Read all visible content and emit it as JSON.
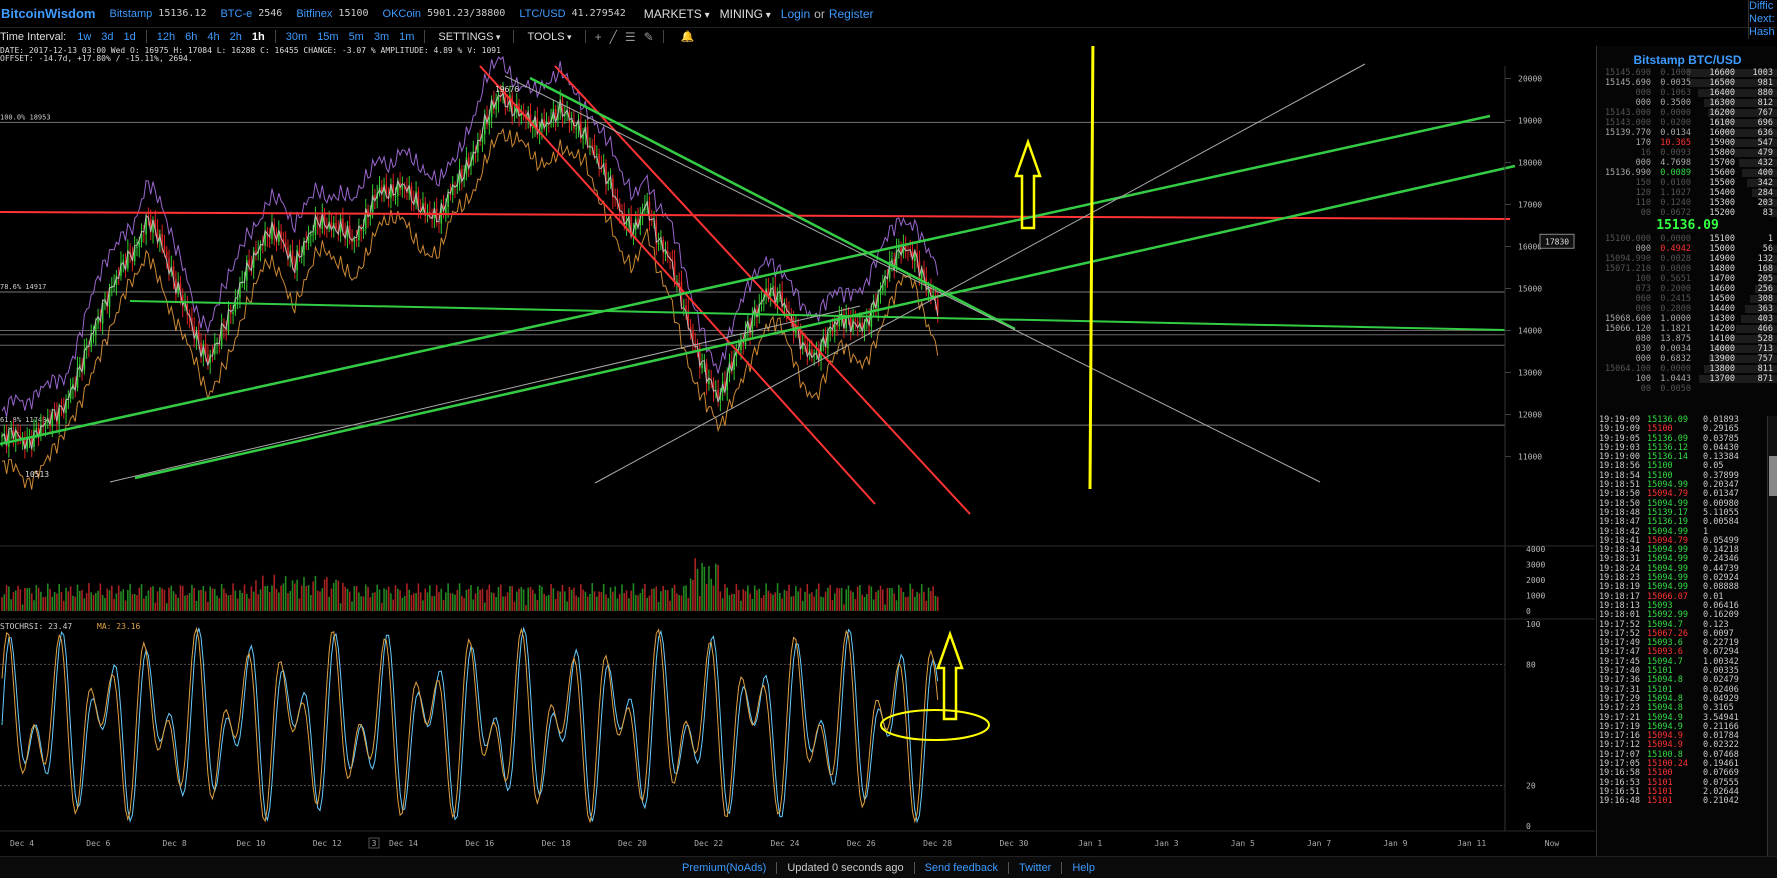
{
  "header": {
    "brand": "BitcoinWisdom",
    "exchanges": [
      {
        "name": "Bitstamp",
        "price": "15136.12"
      },
      {
        "name": "BTC-e",
        "price": "2546"
      },
      {
        "name": "Bitfinex",
        "price": "15100"
      },
      {
        "name": "OKCoin",
        "price": "5901.23/38800"
      },
      {
        "name": "LTC/USD",
        "price": "41.279542"
      }
    ],
    "menus": [
      "MARKETS",
      "MINING"
    ],
    "login": "Login",
    "or": "or",
    "register": "Register",
    "difficulty": [
      "Diffic",
      "Next:",
      "Hash"
    ]
  },
  "toolbar": {
    "time_interval_label": "Time Interval:",
    "intervals_long": [
      "1w",
      "3d",
      "1d"
    ],
    "intervals_hours": [
      "12h",
      "6h",
      "4h",
      "2h",
      "1h"
    ],
    "intervals_minutes": [
      "30m",
      "15m",
      "5m",
      "3m",
      "1m"
    ],
    "active_interval": "1h",
    "settings": "SETTINGS",
    "tools": "TOOLS"
  },
  "chart_info": {
    "line1": "DATE: 2017-12-13 03:00 Wed   O: 16975   H: 17084   L: 16288   C: 16455   CHANGE: -3.07 %   AMPLITUDE: 4.89 %   V: 1091",
    "line2": "OFFSET: -14.7d, +17.80% / -15.11%, 2694."
  },
  "chart_data": {
    "type": "candlestick",
    "price_axis_ticks": [
      "20000",
      "19000",
      "18000",
      "17000",
      "16000",
      "15000",
      "14000",
      "13000",
      "12000",
      "11000"
    ],
    "price_range": [
      10300,
      20200
    ],
    "volume_axis_ticks": [
      "4000",
      "3000",
      "2000",
      "1000",
      "0"
    ],
    "stochrsi_axis_ticks": [
      "100",
      "80",
      "20",
      "0"
    ],
    "x_ticks": [
      "Dec 4",
      "Dec 6",
      "Dec 8",
      "Dec 10",
      "Dec 12",
      "Dec 14",
      "Dec 16",
      "Dec 18",
      "Dec 20",
      "Dec 22",
      "Dec 24",
      "Dec 26",
      "Dec 28",
      "Dec 30",
      "Jan 1",
      "Jan 3",
      "Jan 5",
      "Jan 7",
      "Jan 9",
      "Jan 11",
      "Now"
    ],
    "x_marker": "3",
    "price_label": "17830",
    "high_label": "19676",
    "low_label": "10513",
    "fib_labels": [
      {
        "text": "100.0% 18953",
        "price": 18953
      },
      {
        "text": "78.6% 14917",
        "price": 14917
      },
      {
        "text": "61.8% 11748",
        "price": 11748
      }
    ],
    "fib_extra_levels": [
      14000,
      13900,
      13650
    ],
    "stochrsi_label": "STOCHRSI: 23.47",
    "ma_label": "MA: 23.16",
    "candle_closes": [
      11400,
      11550,
      11300,
      11650,
      11900,
      12100,
      12800,
      13600,
      14300,
      15000,
      15650,
      15900,
      16650,
      16200,
      15300,
      14600,
      13800,
      13300,
      13900,
      14500,
      15400,
      15900,
      16350,
      16200,
      15550,
      16100,
      16600,
      16500,
      16450,
      16100,
      16700,
      17400,
      17250,
      17450,
      17100,
      16800,
      16650,
      17350,
      17800,
      18300,
      19100,
      19650,
      19300,
      19100,
      18800,
      19000,
      19300,
      18900,
      18650,
      18100,
      17500,
      16700,
      16400,
      17050,
      16100,
      15700,
      14700,
      13600,
      12900,
      12400,
      13200,
      13800,
      14400,
      15000,
      14800,
      14200,
      13600,
      13400,
      13900,
      14300,
      14200,
      14100,
      14700,
      15500,
      16000,
      15800,
      15100,
      14600
    ]
  },
  "orderbook": {
    "title": "Bitstamp BTC/USD",
    "asks": [
      {
        "p": "15145.690",
        "a": "0.1000",
        "d": "16600",
        "c": "1003",
        "dim": true
      },
      {
        "p": "15145.690",
        "a": "0.0035",
        "d": "16500",
        "c": "981"
      },
      {
        "p": "000",
        "a": "0.1063",
        "d": "16400",
        "c": "880",
        "dim": true
      },
      {
        "p": "000",
        "a": "0.3500",
        "d": "16300",
        "c": "812"
      },
      {
        "p": "15143.000",
        "a": "0.0000",
        "d": "16200",
        "c": "767",
        "dim": true
      },
      {
        "p": "15143.000",
        "a": "0.0200",
        "d": "16100",
        "c": "696",
        "dim": true
      },
      {
        "p": "15139.770",
        "a": "0.0134",
        "d": "16000",
        "c": "636"
      },
      {
        "p": "170",
        "a": "10.365",
        "d": "15900",
        "c": "547",
        "red": true
      },
      {
        "p": "16",
        "a": "0.0093",
        "d": "15800",
        "c": "479",
        "dim": true
      },
      {
        "p": "000",
        "a": "4.7698",
        "d": "15700",
        "c": "432"
      },
      {
        "p": "15136.990",
        "a": "0.0089",
        "d": "15600",
        "c": "400",
        "green": true
      },
      {
        "p": "150",
        "a": "0.0100",
        "d": "15500",
        "c": "342",
        "dim": true
      },
      {
        "p": "120",
        "a": "1.1027",
        "d": "15400",
        "c": "284",
        "dim": true
      },
      {
        "p": "110",
        "a": "0.1240",
        "d": "15300",
        "c": "203",
        "dim": true
      },
      {
        "p": "00",
        "a": "0.0672",
        "d": "15200",
        "c": "83",
        "dim": true
      }
    ],
    "last": "15136.09",
    "bids": [
      {
        "p": "15100.000",
        "a": "0.0000",
        "d": "15100",
        "c": "1",
        "dim": true
      },
      {
        "p": "000",
        "a": "0.4942",
        "d": "15000",
        "c": "56",
        "red": true
      },
      {
        "p": "15094.990",
        "a": "0.0028",
        "d": "14900",
        "c": "132",
        "dim": true
      },
      {
        "p": "15071.210",
        "a": "0.0800",
        "d": "14800",
        "c": "168",
        "dim": true
      },
      {
        "p": "100",
        "a": "0.5651",
        "d": "14700",
        "c": "205",
        "dim": true
      },
      {
        "p": "073",
        "a": "0.2000",
        "d": "14600",
        "c": "256",
        "dim": true
      },
      {
        "p": "060",
        "a": "0.2415",
        "d": "14500",
        "c": "308",
        "dim": true
      },
      {
        "p": "000",
        "a": "0.2800",
        "d": "14400",
        "c": "363",
        "dim": true
      },
      {
        "p": "15068.600",
        "a": "1.0000",
        "d": "14300",
        "c": "403"
      },
      {
        "p": "15066.120",
        "a": "1.1821",
        "d": "14200",
        "c": "466"
      },
      {
        "p": "080",
        "a": "13.875",
        "d": "14100",
        "c": "528"
      },
      {
        "p": "030",
        "a": "0.0034",
        "d": "14000",
        "c": "713"
      },
      {
        "p": "000",
        "a": "0.6832",
        "d": "13900",
        "c": "757"
      },
      {
        "p": "15064.100",
        "a": "0.0000",
        "d": "13800",
        "c": "811",
        "dim": true
      },
      {
        "p": "100",
        "a": "1.0443",
        "d": "13700",
        "c": "871"
      },
      {
        "p": "00",
        "a": "0.0050",
        "d": "",
        "c": "",
        "dim": true
      }
    ]
  },
  "trades": [
    {
      "t": "19:19:09",
      "p": "15136.09",
      "a": "0.01893",
      "s": "b"
    },
    {
      "t": "19:19:09",
      "p": "15100",
      "a": "0.29165",
      "s": "s"
    },
    {
      "t": "19:19:05",
      "p": "15136.09",
      "a": "0.03785",
      "s": "b"
    },
    {
      "t": "19:19:03",
      "p": "15136.12",
      "a": "0.04430",
      "s": "b"
    },
    {
      "t": "19:19:00",
      "p": "15136.14",
      "a": "0.13384",
      "s": "b"
    },
    {
      "t": "19:18:56",
      "p": "15100",
      "a": "0.05",
      "s": "b"
    },
    {
      "t": "19:18:54",
      "p": "15100",
      "a": "0.37899",
      "s": "b"
    },
    {
      "t": "19:18:51",
      "p": "15094.99",
      "a": "0.20347",
      "s": "b"
    },
    {
      "t": "19:18:50",
      "p": "15094.79",
      "a": "0.01347",
      "s": "s"
    },
    {
      "t": "19:18:50",
      "p": "15094.99",
      "a": "0.00980",
      "s": "b"
    },
    {
      "t": "19:18:48",
      "p": "15139.17",
      "a": "5.11055",
      "s": "b"
    },
    {
      "t": "19:18:47",
      "p": "15136.19",
      "a": "0.00584",
      "s": "b"
    },
    {
      "t": "19:18:42",
      "p": "15094.99",
      "a": "1",
      "s": "b"
    },
    {
      "t": "19:18:41",
      "p": "15094.79",
      "a": "0.05499",
      "s": "s"
    },
    {
      "t": "19:18:34",
      "p": "15094.99",
      "a": "0.14218",
      "s": "b"
    },
    {
      "t": "19:18:31",
      "p": "15094.99",
      "a": "0.24346",
      "s": "b"
    },
    {
      "t": "19:18:24",
      "p": "15094.99",
      "a": "0.44739",
      "s": "b"
    },
    {
      "t": "19:18:23",
      "p": "15094.99",
      "a": "0.02924",
      "s": "b"
    },
    {
      "t": "19:18:19",
      "p": "15094.99",
      "a": "0.08888",
      "s": "b"
    },
    {
      "t": "19:18:17",
      "p": "15066.07",
      "a": "0.01",
      "s": "s"
    },
    {
      "t": "19:18:13",
      "p": "15093",
      "a": "0.06416",
      "s": "b"
    },
    {
      "t": "19:18:01",
      "p": "15092.99",
      "a": "0.16209",
      "s": "b"
    },
    {
      "t": "19:17:52",
      "p": "15094.7",
      "a": "0.123",
      "s": "b"
    },
    {
      "t": "19:17:52",
      "p": "15067.26",
      "a": "0.0097",
      "s": "s"
    },
    {
      "t": "19:17:49",
      "p": "15093.6",
      "a": "0.22719",
      "s": "b"
    },
    {
      "t": "19:17:47",
      "p": "15093.6",
      "a": "0.07294",
      "s": "s"
    },
    {
      "t": "19:17:45",
      "p": "15094.7",
      "a": "1.00342",
      "s": "b"
    },
    {
      "t": "19:17:40",
      "p": "15101",
      "a": "0.00335",
      "s": "b"
    },
    {
      "t": "19:17:36",
      "p": "15094.8",
      "a": "0.02479",
      "s": "b"
    },
    {
      "t": "19:17:31",
      "p": "15101",
      "a": "0.02406",
      "s": "b"
    },
    {
      "t": "19:17:29",
      "p": "15094.8",
      "a": "0.04929",
      "s": "b"
    },
    {
      "t": "19:17:23",
      "p": "15094.8",
      "a": "0.3165",
      "s": "b"
    },
    {
      "t": "19:17:21",
      "p": "15094.9",
      "a": "3.54941",
      "s": "b"
    },
    {
      "t": "19:17:19",
      "p": "15094.9",
      "a": "0.21166",
      "s": "b"
    },
    {
      "t": "19:17:16",
      "p": "15094.9",
      "a": "0.01784",
      "s": "s"
    },
    {
      "t": "19:17:12",
      "p": "15094.9",
      "a": "0.02322",
      "s": "s"
    },
    {
      "t": "19:17:07",
      "p": "15100.8",
      "a": "0.07468",
      "s": "b"
    },
    {
      "t": "19:17:05",
      "p": "15100.24",
      "a": "0.19461",
      "s": "s"
    },
    {
      "t": "19:16:58",
      "p": "15100",
      "a": "0.07669",
      "s": "s"
    },
    {
      "t": "19:16:53",
      "p": "15101",
      "a": "0.07555",
      "s": "s"
    },
    {
      "t": "19:16:51",
      "p": "15101",
      "a": "2.02644",
      "s": "s"
    },
    {
      "t": "19:16:48",
      "p": "15101",
      "a": "0.21042",
      "s": "s"
    }
  ],
  "footer": {
    "premium": "Premium(NoAds)",
    "updated": "Updated 0 seconds ago",
    "feedback": "Send feedback",
    "twitter": "Twitter",
    "help": "Help"
  },
  "colors": {
    "accent": "#3d9bff",
    "up": "#33dd44",
    "down": "#ff3333",
    "annotation": "#ffff00"
  }
}
